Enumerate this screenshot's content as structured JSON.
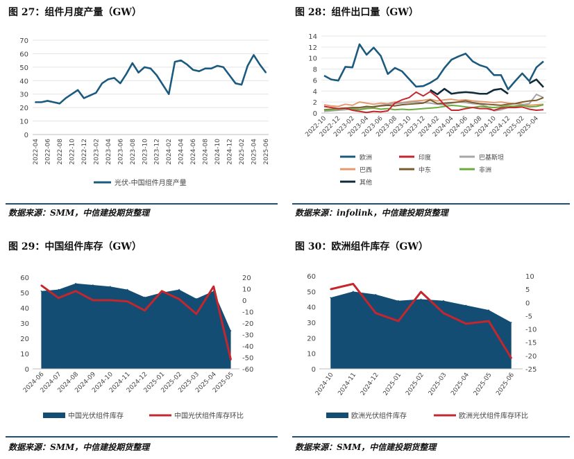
{
  "colors": {
    "navy": "#1b5a7e",
    "red": "#c4262e",
    "gray": "#a6a6a6",
    "orange": "#e39a6f",
    "brown": "#7a5a2c",
    "green": "#6aab3c",
    "black": "#0f2b3a",
    "rule": "#1f4e79",
    "area": "#134d73"
  },
  "charts": [
    {
      "title": "图 27：组件月度产量（GW）",
      "source": "数据来源：SMM，中信建投期货整理"
    },
    {
      "title": "图 28：组件出口量（GW）",
      "source": "数据来源：infolink，中信建投期货整理"
    },
    {
      "title": "图 29：中国组件库存（GW）",
      "source": "数据来源：SMM，中信建投期货整理"
    },
    {
      "title": "图 30：欧洲组件库存（GW）",
      "source": "数据来源：SMM，中信建投期货整理"
    }
  ],
  "chart_data": [
    {
      "type": "line",
      "title": "",
      "x": [
        "2022-04",
        "2022-05",
        "2022-06",
        "2022-07",
        "2022-08",
        "2022-09",
        "2022-10",
        "2022-11",
        "2022-12",
        "2023-01",
        "2023-02",
        "2023-03",
        "2023-04",
        "2023-05",
        "2023-06",
        "2023-07",
        "2023-08",
        "2023-09",
        "2023-10",
        "2023-11",
        "2023-12",
        "2024-01",
        "2024-02",
        "2024-03",
        "2024-04",
        "2024-05",
        "2024-06",
        "2024-07",
        "2024-08",
        "2024-09",
        "2024-10",
        "2024-11",
        "2024-12",
        "2025-01",
        "2025-02",
        "2025-03",
        "2025-04",
        "2025-05",
        "2025-06"
      ],
      "xticks": [
        "2022-04",
        "2022-06",
        "2022-08",
        "2022-10",
        "2022-12",
        "2023-02",
        "2023-04",
        "2023-06",
        "2023-08",
        "2023-10",
        "2023-12",
        "2024-02",
        "2024-04",
        "2024-06",
        "2024-08",
        "2024-10",
        "2024-12",
        "2025-02",
        "2025-04",
        "2025-06"
      ],
      "series": [
        {
          "name": "光伏-中国组件月度产量",
          "color": "#1b5a7e",
          "values": [
            24,
            24,
            25,
            24,
            23,
            27,
            30,
            33,
            27,
            29,
            31,
            38,
            41,
            42,
            38,
            45,
            53,
            46,
            50,
            49,
            44,
            37,
            30,
            54,
            55,
            52,
            48,
            47,
            49,
            49,
            51,
            50,
            44,
            38,
            37,
            51,
            59,
            52,
            46
          ]
        }
      ],
      "ylim": [
        0,
        70
      ],
      "yticks": [
        0,
        10,
        20,
        30,
        40,
        50,
        60,
        70
      ],
      "grid": true,
      "legend": "bottom"
    },
    {
      "type": "line",
      "title": "",
      "x": [
        "2022-10",
        "2022-11",
        "2022-12",
        "2023-01",
        "2023-02",
        "2023-03",
        "2023-04",
        "2023-05",
        "2023-06",
        "2023-07",
        "2023-08",
        "2023-09",
        "2023-10",
        "2023-11",
        "2023-12",
        "2024-01",
        "2024-02",
        "2024-03",
        "2024-04",
        "2024-05",
        "2024-06",
        "2024-07",
        "2024-08",
        "2024-09",
        "2024-10",
        "2024-11",
        "2024-12",
        "2025-01",
        "2025-02",
        "2025-03",
        "2025-04",
        "2025-05"
      ],
      "xticks": [
        "2022-10",
        "2022-12",
        "2023-02",
        "2023-04",
        "2023-06",
        "2023-08",
        "2023-10",
        "2023-12",
        "2024-02",
        "2024-04",
        "2024-06",
        "2024-08",
        "2024-10",
        "2024-12",
        "2025-02",
        "2025-04"
      ],
      "series": [
        {
          "name": "欧洲",
          "color": "#1b5a7e",
          "values": [
            6.8,
            6.1,
            5.9,
            8.4,
            8.3,
            12.5,
            10.6,
            11.9,
            10.4,
            7.1,
            8.2,
            7.6,
            6.2,
            4.8,
            4.9,
            5.5,
            6.3,
            8.2,
            9.7,
            10.3,
            10.8,
            9.4,
            8.7,
            8.3,
            6.9,
            6.9,
            4.3,
            5.8,
            7.2,
            5.8,
            8.3,
            9.4
          ]
        },
        {
          "name": "印度",
          "color": "#c4262e",
          "values": [
            1.2,
            1.0,
            0.8,
            0.9,
            0.5,
            0.3,
            0.1,
            0.3,
            0.2,
            0.4,
            1.8,
            2.4,
            2.8,
            3.8,
            3.1,
            3.9,
            2.9,
            1.5,
            0.5,
            0.5,
            0.8,
            1.0,
            0.8,
            0.8,
            0.5,
            0.9,
            1.0,
            1.0,
            1.1,
            0.7,
            0.5,
            0.6
          ]
        },
        {
          "name": "巴基斯坦",
          "color": "#a6a6a6",
          "values": [
            0.3,
            0.4,
            0.5,
            0.6,
            0.8,
            0.9,
            1.0,
            1.2,
            1.4,
            1.6,
            1.7,
            1.8,
            1.9,
            2.0,
            1.9,
            1.8,
            1.6,
            1.5,
            1.8,
            2.0,
            1.9,
            1.7,
            1.6,
            1.2,
            0.4,
            0.6,
            1.0,
            1.3,
            1.5,
            1.7,
            3.4,
            2.8
          ]
        },
        {
          "name": "巴西",
          "color": "#e39a6f",
          "values": [
            1.5,
            1.3,
            1.2,
            1.6,
            1.4,
            2.0,
            1.8,
            1.6,
            1.8,
            1.7,
            2.0,
            1.9,
            2.1,
            2.2,
            2.3,
            2.5,
            2.2,
            2.4,
            2.5,
            2.3,
            2.4,
            2.2,
            2.1,
            2.0,
            1.9,
            2.0,
            1.8,
            1.7,
            1.6,
            1.4,
            1.5,
            1.6
          ]
        },
        {
          "name": "中东",
          "color": "#7a5a2c",
          "values": [
            0.6,
            0.7,
            0.8,
            0.9,
            1.0,
            1.0,
            1.2,
            1.1,
            1.3,
            1.4,
            1.3,
            1.5,
            1.6,
            1.7,
            1.8,
            2.4,
            1.7,
            1.8,
            1.9,
            2.0,
            2.2,
            1.9,
            1.7,
            1.6,
            1.5,
            1.4,
            1.6,
            1.7,
            2.0,
            2.2,
            2.3,
            2.8
          ]
        },
        {
          "name": "非洲",
          "color": "#6aab3c",
          "values": [
            0.5,
            0.6,
            0.7,
            0.8,
            0.7,
            0.6,
            0.8,
            0.9,
            0.7,
            0.8,
            0.6,
            0.7,
            0.6,
            0.7,
            0.8,
            0.9,
            1.0,
            1.2,
            1.4,
            1.3,
            1.1,
            1.0,
            1.2,
            1.1,
            1.0,
            1.1,
            1.3,
            1.2,
            1.4,
            1.1,
            1.2,
            1.5
          ]
        },
        {
          "name": "其他",
          "color": "#0f2b3a",
          "values": [
            null,
            null,
            null,
            null,
            null,
            null,
            null,
            null,
            null,
            null,
            null,
            null,
            null,
            null,
            null,
            4.2,
            3.4,
            4.4,
            3.5,
            3.7,
            3.8,
            3.7,
            3.5,
            3.5,
            4.2,
            4.4,
            3.5,
            null,
            null,
            5.4,
            6.1,
            4.7
          ]
        }
      ],
      "ylim": [
        0,
        14
      ],
      "yticks": [
        0,
        2,
        4,
        6,
        8,
        10,
        12,
        14
      ],
      "grid": true,
      "legend": "bottom"
    },
    {
      "type": "area",
      "title": "",
      "categories": [
        "2024-06",
        "2024-07",
        "2024-08",
        "2024-09",
        "2024-10",
        "2024-11",
        "2024-12",
        "2025-01",
        "2025-02",
        "2025-03",
        "2025-04",
        "2025-05"
      ],
      "series": [
        {
          "name": "中国光伏组件库存",
          "type": "area",
          "axis": "left",
          "color": "#134d73",
          "values": [
            51,
            52,
            56,
            55,
            54,
            52,
            47,
            50,
            52,
            46,
            51,
            25
          ]
        },
        {
          "name": "中国光伏组件库存环比",
          "type": "line",
          "axis": "right",
          "color": "#c4262e",
          "values": [
            13,
            2,
            8,
            0,
            0,
            -1,
            -9,
            8,
            1,
            -12,
            12,
            -52
          ]
        }
      ],
      "ylim_left": [
        0,
        60
      ],
      "yticks_left": [
        0,
        10,
        20,
        30,
        40,
        50,
        60
      ],
      "ylim_right": [
        -60,
        20
      ],
      "yticks_right": [
        20,
        10,
        0,
        -10,
        -20,
        -30,
        -40,
        -50,
        -60
      ],
      "grid": false,
      "legend": "bottom"
    },
    {
      "type": "area",
      "title": "",
      "categories": [
        "2024-10",
        "2024-11",
        "2024-12",
        "2025-01",
        "2025-02",
        "2025-03",
        "2025-04",
        "2025-05",
        "2025-06"
      ],
      "series": [
        {
          "name": "欧洲光伏组件库存",
          "type": "area",
          "axis": "left",
          "color": "#134d73",
          "values": [
            46,
            50,
            48,
            44,
            45,
            44,
            41,
            38,
            30
          ]
        },
        {
          "name": "欧洲光伏组件库存环比",
          "type": "line",
          "axis": "right",
          "color": "#c4262e",
          "values": [
            5,
            7,
            -4,
            -7,
            4,
            -4,
            -8,
            -7,
            -21
          ]
        }
      ],
      "ylim_left": [
        0,
        60
      ],
      "yticks_left": [
        0,
        10,
        20,
        30,
        40,
        50,
        60
      ],
      "ylim_right": [
        -25,
        10
      ],
      "yticks_right": [
        10,
        5,
        0,
        -5,
        -10,
        -15,
        -20,
        -25
      ],
      "grid": false,
      "legend": "bottom"
    }
  ]
}
